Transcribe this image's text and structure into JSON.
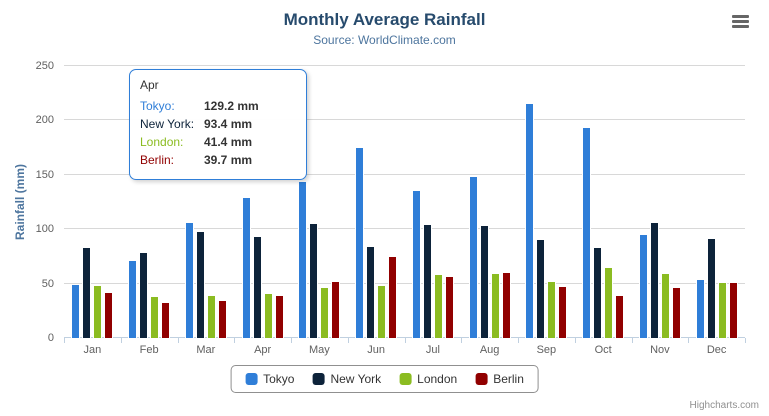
{
  "title": "Monthly Average Rainfall",
  "subtitle": "Source: WorldClimate.com",
  "credits": "Highcharts.com",
  "chart_data": {
    "type": "bar",
    "title": "Monthly Average Rainfall",
    "subtitle": "Source: WorldClimate.com",
    "categories": [
      "Jan",
      "Feb",
      "Mar",
      "Apr",
      "May",
      "Jun",
      "Jul",
      "Aug",
      "Sep",
      "Oct",
      "Nov",
      "Dec"
    ],
    "series": [
      {
        "name": "Tokyo",
        "color": "#2f7ed8",
        "values": [
          49.9,
          71.5,
          106.4,
          129.2,
          144.0,
          176.0,
          135.6,
          148.5,
          216.4,
          194.1,
          95.6,
          54.4
        ]
      },
      {
        "name": "New York",
        "color": "#0d233a",
        "values": [
          83.6,
          78.8,
          98.5,
          93.4,
          106.0,
          84.5,
          105.0,
          104.3,
          91.2,
          83.5,
          106.6,
          92.3
        ]
      },
      {
        "name": "London",
        "color": "#8bbc21",
        "values": [
          48.9,
          38.8,
          39.3,
          41.4,
          47.0,
          48.3,
          59.0,
          59.6,
          52.4,
          65.2,
          59.3,
          51.2
        ]
      },
      {
        "name": "Berlin",
        "color": "#910000",
        "values": [
          42.4,
          33.2,
          34.5,
          39.7,
          52.6,
          75.5,
          57.4,
          60.4,
          47.6,
          39.1,
          46.8,
          51.1
        ]
      }
    ],
    "xlabel": "",
    "ylabel": "Rainfall (mm)",
    "ylim": [
      0,
      250
    ],
    "yticks": [
      0,
      50,
      100,
      150,
      200,
      250
    ],
    "grid": true,
    "legend_position": "bottom"
  },
  "tooltip": {
    "header": "Apr",
    "border_color": "#2f7ed8",
    "rows": [
      {
        "name": "Tokyo",
        "color": "#2f7ed8",
        "value": "129.2 mm"
      },
      {
        "name": "New York",
        "color": "#0d233a",
        "value": "93.4 mm"
      },
      {
        "name": "London",
        "color": "#8bbc21",
        "value": "41.4 mm"
      },
      {
        "name": "Berlin",
        "color": "#910000",
        "value": "39.7 mm"
      }
    ]
  }
}
